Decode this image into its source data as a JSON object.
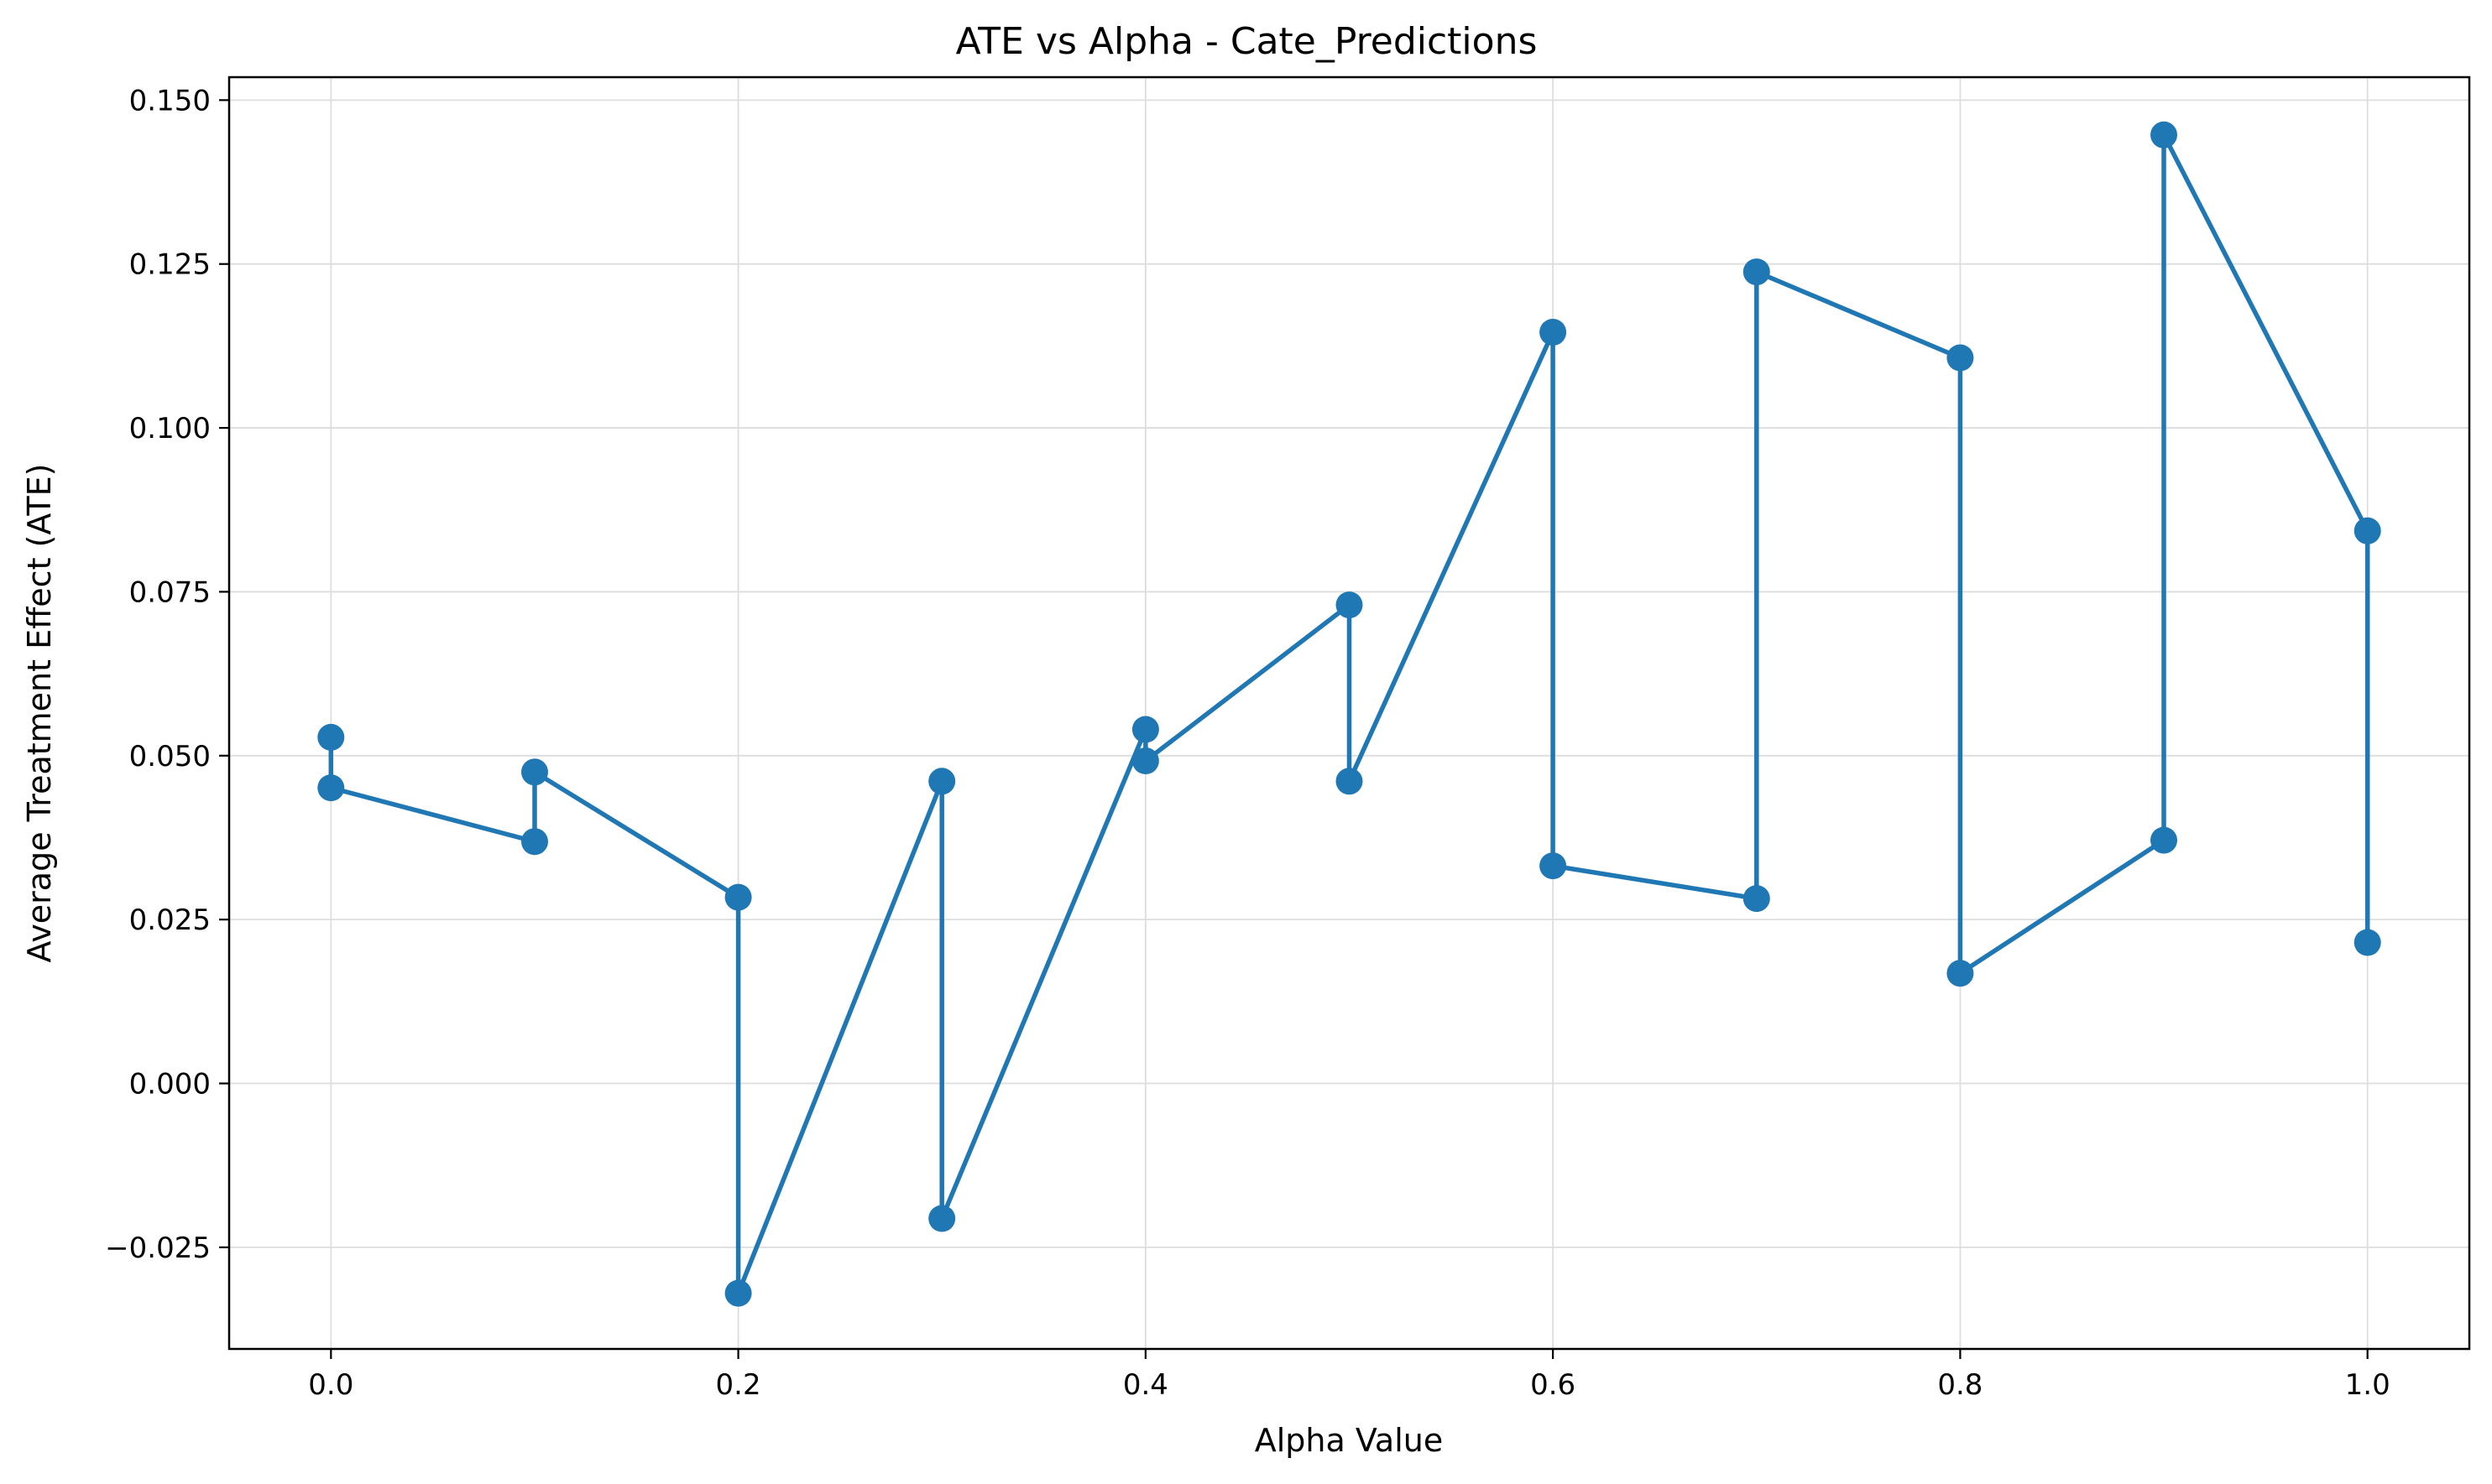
{
  "colors": {
    "series": "#1f77b4",
    "grid": "#dddddd",
    "axis": "#000000",
    "background": "#ffffff"
  },
  "chart_data": {
    "type": "line",
    "title": "ATE vs Alpha - Cate_Predictions",
    "xlabel": "Alpha Value",
    "ylabel": "Average Treatment Effect (ATE)",
    "xlim": [
      -0.05,
      1.05
    ],
    "ylim": [
      -0.0405,
      0.1535
    ],
    "grid": true,
    "markers": "circle",
    "xticks": [
      0.0,
      0.2,
      0.4,
      0.6,
      0.8,
      1.0
    ],
    "xtick_labels": [
      "0.0",
      "0.2",
      "0.4",
      "0.6",
      "0.8",
      "1.0"
    ],
    "yticks": [
      -0.025,
      0.0,
      0.025,
      0.05,
      0.075,
      0.1,
      0.125,
      0.15
    ],
    "ytick_labels": [
      "−0.025",
      "0.000",
      "0.025",
      "0.050",
      "0.075",
      "0.100",
      "0.125",
      "0.150"
    ],
    "series": [
      {
        "x": [
          0.0,
          0.0,
          0.1,
          0.1,
          0.2,
          0.2,
          0.3,
          0.3,
          0.4,
          0.4,
          0.5,
          0.5,
          0.6,
          0.6,
          0.7,
          0.7,
          0.8,
          0.8,
          0.9,
          0.9,
          1.0,
          1.0
        ],
        "y": [
          0.0528,
          0.0451,
          0.0369,
          0.0475,
          0.0284,
          -0.032,
          0.0461,
          -0.0206,
          0.054,
          0.0492,
          0.073,
          0.0461,
          0.1146,
          0.0332,
          0.0282,
          0.1238,
          0.1107,
          0.0168,
          0.0371,
          0.1447,
          0.0843,
          0.0215
        ]
      }
    ]
  }
}
